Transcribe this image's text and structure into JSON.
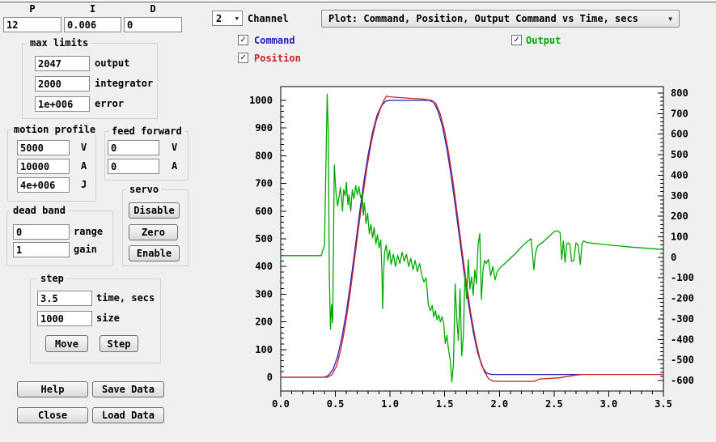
{
  "pid": {
    "p_label": "P",
    "i_label": "I",
    "d_label": "D",
    "p": "12",
    "i": "0.006",
    "d": "0"
  },
  "max_limits": {
    "title": "max limits",
    "rows": [
      {
        "value": "2047",
        "label": "output"
      },
      {
        "value": "2000",
        "label": "integrator"
      },
      {
        "value": "1e+006",
        "label": "error"
      }
    ]
  },
  "motion_profile": {
    "title": "motion profile",
    "rows": [
      {
        "value": "5000",
        "label": "V"
      },
      {
        "value": "10000",
        "label": "A"
      },
      {
        "value": "4e+006",
        "label": "J"
      }
    ]
  },
  "feed_forward": {
    "title": "feed forward",
    "rows": [
      {
        "value": "0",
        "label": "V"
      },
      {
        "value": "0",
        "label": "A"
      }
    ]
  },
  "servo": {
    "title": "servo",
    "buttons": [
      "Disable",
      "Zero",
      "Enable"
    ]
  },
  "dead_band": {
    "title": "dead band",
    "rows": [
      {
        "value": "0",
        "label": "range"
      },
      {
        "value": "1",
        "label": "gain"
      }
    ]
  },
  "step": {
    "title": "step",
    "rows": [
      {
        "value": "3.5",
        "label": "time, secs"
      },
      {
        "value": "1000",
        "label": "size"
      }
    ],
    "buttons": [
      "Move",
      "Step"
    ]
  },
  "bottom_buttons": {
    "help": "Help",
    "save": "Save Data",
    "close": "Close",
    "load": "Load Data"
  },
  "channel": {
    "value": "2",
    "label": "Channel"
  },
  "plot_select": {
    "value": "Plot: Command, Position, Output Command vs Time, secs"
  },
  "legend": {
    "command": {
      "label": "Command",
      "color": "#2222bb",
      "checked": true
    },
    "position": {
      "label": "Position",
      "color": "#cc2222",
      "checked": true
    },
    "output": {
      "label": "Output",
      "color": "#00a800",
      "checked": true
    }
  },
  "chart_data": {
    "type": "line",
    "title": "",
    "xlabel": "Time, secs",
    "legend_position": "top",
    "grid": false,
    "axes": {
      "x": {
        "min": 0,
        "max": 3.5,
        "major": 0.5,
        "minor": 0.1,
        "decimals": 1
      },
      "left": {
        "min": 0,
        "max": 1000,
        "major": 100,
        "minor": 20
      },
      "right": {
        "min": -600,
        "max": 800,
        "major": 100,
        "minor": 20
      }
    },
    "series": [
      {
        "name": "Command",
        "axis": "left",
        "color": "#2222bb",
        "points": [
          [
            0,
            0
          ],
          [
            0.4,
            0
          ],
          [
            0.44,
            8
          ],
          [
            0.48,
            30
          ],
          [
            0.52,
            75
          ],
          [
            0.56,
            145
          ],
          [
            0.6,
            235
          ],
          [
            0.64,
            345
          ],
          [
            0.68,
            465
          ],
          [
            0.72,
            590
          ],
          [
            0.76,
            705
          ],
          [
            0.8,
            805
          ],
          [
            0.84,
            885
          ],
          [
            0.88,
            945
          ],
          [
            0.92,
            980
          ],
          [
            0.96,
            997
          ],
          [
            1.0,
            1000
          ],
          [
            1.36,
            1000
          ],
          [
            1.4,
            993
          ],
          [
            1.44,
            960
          ],
          [
            1.48,
            905
          ],
          [
            1.52,
            825
          ],
          [
            1.56,
            725
          ],
          [
            1.6,
            610
          ],
          [
            1.64,
            490
          ],
          [
            1.68,
            370
          ],
          [
            1.72,
            260
          ],
          [
            1.76,
            165
          ],
          [
            1.8,
            90
          ],
          [
            1.84,
            40
          ],
          [
            1.88,
            15
          ],
          [
            1.93,
            10
          ],
          [
            2.75,
            10
          ]
        ]
      },
      {
        "name": "Position",
        "axis": "left",
        "color": "#cc2222",
        "points": [
          [
            0,
            0
          ],
          [
            0.43,
            0
          ],
          [
            0.47,
            10
          ],
          [
            0.51,
            40
          ],
          [
            0.55,
            100
          ],
          [
            0.59,
            185
          ],
          [
            0.63,
            290
          ],
          [
            0.67,
            410
          ],
          [
            0.71,
            535
          ],
          [
            0.75,
            655
          ],
          [
            0.79,
            762
          ],
          [
            0.83,
            852
          ],
          [
            0.87,
            922
          ],
          [
            0.91,
            968
          ],
          [
            0.94,
            998
          ],
          [
            0.965,
            1015
          ],
          [
            1.0,
            1013
          ],
          [
            1.1,
            1010
          ],
          [
            1.2,
            1007
          ],
          [
            1.3,
            1005
          ],
          [
            1.38,
            1000
          ],
          [
            1.42,
            988
          ],
          [
            1.46,
            950
          ],
          [
            1.5,
            888
          ],
          [
            1.54,
            800
          ],
          [
            1.58,
            695
          ],
          [
            1.62,
            575
          ],
          [
            1.66,
            453
          ],
          [
            1.7,
            335
          ],
          [
            1.74,
            228
          ],
          [
            1.78,
            138
          ],
          [
            1.82,
            68
          ],
          [
            1.86,
            22
          ],
          [
            1.9,
            -5
          ],
          [
            1.94,
            -14
          ],
          [
            2.0,
            -15
          ],
          [
            2.32,
            -15
          ],
          [
            2.37,
            -6
          ],
          [
            2.55,
            -2
          ],
          [
            2.7,
            8
          ],
          [
            2.76,
            10
          ],
          [
            3.5,
            10
          ]
        ]
      },
      {
        "name": "Output",
        "axis": "right",
        "color": "#00a800",
        "points": [
          [
            0,
            8
          ],
          [
            0.37,
            8
          ],
          [
            0.4,
            60
          ],
          [
            0.415,
            500
          ],
          [
            0.425,
            795
          ],
          [
            0.435,
            600
          ],
          [
            0.445,
            -100
          ],
          [
            0.455,
            -350
          ],
          [
            0.465,
            -230
          ],
          [
            0.475,
            -320
          ],
          [
            0.49,
            450
          ],
          [
            0.505,
            320
          ],
          [
            0.52,
            250
          ],
          [
            0.545,
            340
          ],
          [
            0.555,
            290
          ],
          [
            0.565,
            225
          ],
          [
            0.575,
            330
          ],
          [
            0.59,
            300
          ],
          [
            0.6,
            365
          ],
          [
            0.615,
            255
          ],
          [
            0.625,
            305
          ],
          [
            0.64,
            225
          ],
          [
            0.655,
            330
          ],
          [
            0.67,
            285
          ],
          [
            0.685,
            350
          ],
          [
            0.7,
            305
          ],
          [
            0.715,
            345
          ],
          [
            0.73,
            290
          ],
          [
            0.745,
            310
          ],
          [
            0.755,
            205
          ],
          [
            0.765,
            265
          ],
          [
            0.78,
            165
          ],
          [
            0.795,
            215
          ],
          [
            0.81,
            115
          ],
          [
            0.825,
            160
          ],
          [
            0.84,
            95
          ],
          [
            0.855,
            145
          ],
          [
            0.87,
            65
          ],
          [
            0.885,
            110
          ],
          [
            0.9,
            45
          ],
          [
            0.915,
            85
          ],
          [
            0.925,
            -60
          ],
          [
            0.932,
            -250
          ],
          [
            0.94,
            -90
          ],
          [
            0.95,
            25
          ],
          [
            0.965,
            60
          ],
          [
            0.98,
            -15
          ],
          [
            0.995,
            35
          ],
          [
            1.01,
            -35
          ],
          [
            1.03,
            15
          ],
          [
            1.05,
            -45
          ],
          [
            1.07,
            10
          ],
          [
            1.09,
            -30
          ],
          [
            1.11,
            25
          ],
          [
            1.13,
            -20
          ],
          [
            1.15,
            15
          ],
          [
            1.17,
            -45
          ],
          [
            1.19,
            -5
          ],
          [
            1.21,
            -60
          ],
          [
            1.23,
            -15
          ],
          [
            1.25,
            -70
          ],
          [
            1.27,
            -30
          ],
          [
            1.29,
            -85
          ],
          [
            1.31,
            -120
          ],
          [
            1.33,
            -100
          ],
          [
            1.35,
            -230
          ],
          [
            1.37,
            -260
          ],
          [
            1.385,
            -235
          ],
          [
            1.4,
            -290
          ],
          [
            1.415,
            -260
          ],
          [
            1.43,
            -305
          ],
          [
            1.445,
            -280
          ],
          [
            1.46,
            -315
          ],
          [
            1.475,
            -290
          ],
          [
            1.49,
            -320
          ],
          [
            1.505,
            -420
          ],
          [
            1.52,
            -380
          ],
          [
            1.535,
            -450
          ],
          [
            1.55,
            -500
          ],
          [
            1.565,
            -607
          ],
          [
            1.58,
            -520
          ],
          [
            1.595,
            -130
          ],
          [
            1.61,
            -300
          ],
          [
            1.625,
            -405
          ],
          [
            1.64,
            -155
          ],
          [
            1.655,
            -480
          ],
          [
            1.67,
            -385
          ],
          [
            1.685,
            -80
          ],
          [
            1.7,
            -200
          ],
          [
            1.715,
            -10
          ],
          [
            1.73,
            -155
          ],
          [
            1.745,
            -95
          ],
          [
            1.76,
            -185
          ],
          [
            1.775,
            -60
          ],
          [
            1.79,
            -130
          ],
          [
            1.805,
            60
          ],
          [
            1.82,
            115
          ],
          [
            1.835,
            -205
          ],
          [
            1.85,
            -65
          ],
          [
            1.865,
            -15
          ],
          [
            1.88,
            -30
          ],
          [
            1.9,
            -10
          ],
          [
            1.92,
            -90
          ],
          [
            1.94,
            -45
          ],
          [
            1.96,
            -110
          ],
          [
            1.98,
            -70
          ],
          [
            2.0,
            -55
          ],
          [
            2.05,
            -30
          ],
          [
            2.1,
            -5
          ],
          [
            2.15,
            20
          ],
          [
            2.2,
            50
          ],
          [
            2.25,
            75
          ],
          [
            2.29,
            91
          ],
          [
            2.315,
            -60
          ],
          [
            2.33,
            20
          ],
          [
            2.35,
            55
          ],
          [
            2.4,
            75
          ],
          [
            2.45,
            100
          ],
          [
            2.5,
            125
          ],
          [
            2.53,
            130
          ],
          [
            2.555,
            120
          ],
          [
            2.57,
            -10
          ],
          [
            2.585,
            80
          ],
          [
            2.6,
            -25
          ],
          [
            2.615,
            65
          ],
          [
            2.63,
            70
          ],
          [
            2.645,
            60
          ],
          [
            2.66,
            -20
          ],
          [
            2.68,
            -15
          ],
          [
            2.7,
            70
          ],
          [
            2.72,
            60
          ],
          [
            2.74,
            -35
          ],
          [
            2.755,
            65
          ],
          [
            2.77,
            80
          ],
          [
            2.8,
            72
          ],
          [
            2.9,
            66
          ],
          [
            3.0,
            60
          ],
          [
            3.1,
            55
          ],
          [
            3.2,
            50
          ],
          [
            3.3,
            46
          ],
          [
            3.4,
            42
          ],
          [
            3.5,
            38
          ]
        ]
      }
    ]
  }
}
